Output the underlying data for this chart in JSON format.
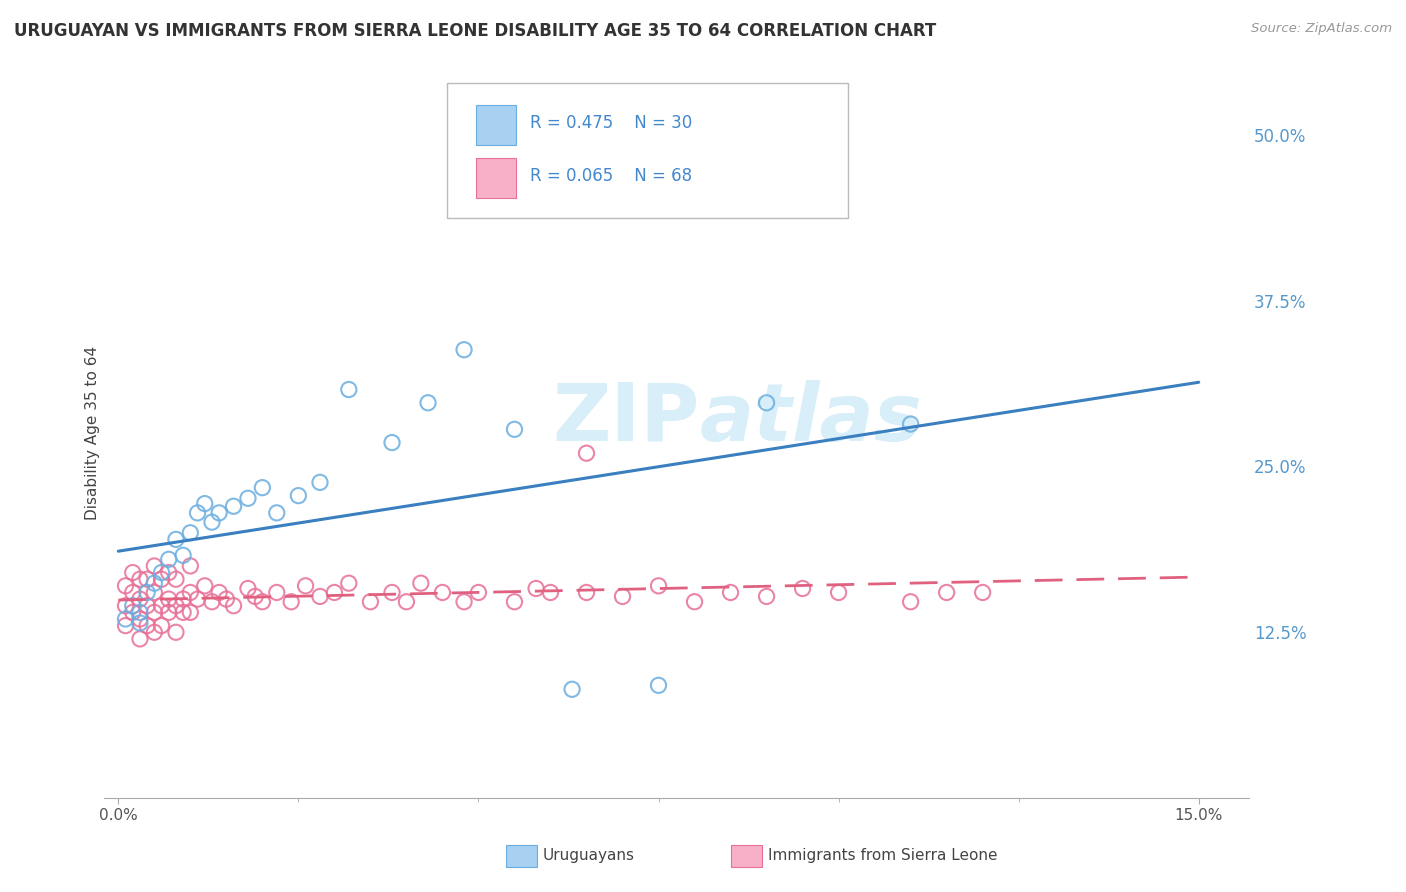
{
  "title": "URUGUAYAN VS IMMIGRANTS FROM SIERRA LEONE DISABILITY AGE 35 TO 64 CORRELATION CHART",
  "source_text": "Source: ZipAtlas.com",
  "ylabel": "Disability Age 35 to 64",
  "xmin": 0.0,
  "xmax": 0.15,
  "ymin": 0.0,
  "ymax": 0.55,
  "yticks": [
    0.125,
    0.25,
    0.375,
    0.5
  ],
  "ytick_labels": [
    "12.5%",
    "25.0%",
    "37.5%",
    "50.0%"
  ],
  "xtick_labels": [
    "0.0%",
    "15.0%"
  ],
  "blue_scatter_color": "#a8d0f0",
  "blue_edge_color": "#6aaee0",
  "pink_scatter_color": "#f8b0c8",
  "pink_edge_color": "#e87098",
  "blue_line_color": "#3a7fbf",
  "pink_line_color": "#e06080",
  "watermark_color": "#d8eef8",
  "legend_R1": "R = 0.475",
  "legend_N1": "N = 30",
  "legend_R2": "R = 0.065",
  "legend_N2": "N = 68",
  "uruguayan_x": [
    0.001,
    0.002,
    0.003,
    0.004,
    0.005,
    0.006,
    0.007,
    0.008,
    0.009,
    0.01,
    0.011,
    0.012,
    0.013,
    0.014,
    0.016,
    0.018,
    0.02,
    0.022,
    0.025,
    0.028,
    0.032,
    0.038,
    0.043,
    0.048,
    0.055,
    0.063,
    0.075,
    0.09,
    0.11,
    0.003
  ],
  "uruguayan_y": [
    0.135,
    0.145,
    0.14,
    0.155,
    0.162,
    0.17,
    0.18,
    0.195,
    0.183,
    0.2,
    0.215,
    0.222,
    0.208,
    0.215,
    0.22,
    0.226,
    0.234,
    0.215,
    0.228,
    0.238,
    0.308,
    0.268,
    0.298,
    0.338,
    0.278,
    0.082,
    0.085,
    0.298,
    0.282,
    0.132
  ],
  "sl_x": [
    0.001,
    0.001,
    0.001,
    0.002,
    0.002,
    0.002,
    0.003,
    0.003,
    0.003,
    0.003,
    0.004,
    0.004,
    0.004,
    0.005,
    0.005,
    0.005,
    0.005,
    0.006,
    0.006,
    0.006,
    0.007,
    0.007,
    0.007,
    0.008,
    0.008,
    0.008,
    0.009,
    0.009,
    0.01,
    0.01,
    0.01,
    0.011,
    0.012,
    0.013,
    0.014,
    0.015,
    0.016,
    0.018,
    0.019,
    0.02,
    0.022,
    0.024,
    0.026,
    0.028,
    0.03,
    0.032,
    0.035,
    0.038,
    0.04,
    0.042,
    0.045,
    0.048,
    0.05,
    0.055,
    0.058,
    0.06,
    0.065,
    0.07,
    0.075,
    0.08,
    0.085,
    0.09,
    0.095,
    0.1,
    0.11,
    0.115,
    0.065,
    0.12
  ],
  "sl_y": [
    0.145,
    0.16,
    0.13,
    0.155,
    0.14,
    0.17,
    0.15,
    0.135,
    0.165,
    0.12,
    0.145,
    0.165,
    0.13,
    0.155,
    0.14,
    0.125,
    0.175,
    0.145,
    0.165,
    0.13,
    0.15,
    0.14,
    0.17,
    0.145,
    0.165,
    0.125,
    0.15,
    0.14,
    0.155,
    0.14,
    0.175,
    0.15,
    0.16,
    0.148,
    0.155,
    0.15,
    0.145,
    0.158,
    0.152,
    0.148,
    0.155,
    0.148,
    0.16,
    0.152,
    0.155,
    0.162,
    0.148,
    0.155,
    0.148,
    0.162,
    0.155,
    0.148,
    0.155,
    0.148,
    0.158,
    0.155,
    0.155,
    0.152,
    0.16,
    0.148,
    0.155,
    0.152,
    0.158,
    0.155,
    0.148,
    0.155,
    0.26,
    0.155
  ]
}
